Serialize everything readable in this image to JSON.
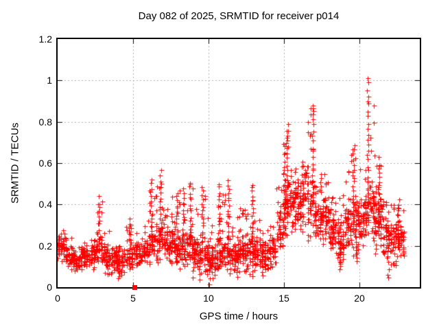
{
  "chart_data": {
    "type": "scatter",
    "title": "Day 082 of 2025, SRMTID for receiver p014",
    "xlabel": "GPS time / hours",
    "ylabel": "SRMTID / TECUs",
    "xlim": [
      0,
      24
    ],
    "ylim": [
      0,
      1.2
    ],
    "xticks": [
      0,
      5,
      10,
      15,
      20
    ],
    "xtick_labels": [
      "0",
      "5",
      "10",
      "15",
      "20"
    ],
    "yticks": [
      0,
      0.2,
      0.4,
      0.6,
      0.8,
      1,
      1.2
    ],
    "ytick_labels": [
      "0",
      "0.2",
      "0.4",
      "0.6",
      "0.8",
      "1",
      "1.2"
    ],
    "grid": true,
    "grid_style": "dotted",
    "grid_color": "#b0b0b0",
    "axis_color": "#000000",
    "legend_position": "none",
    "marker": "plus",
    "marker_size_px": 7,
    "marker_color": "#ff0000",
    "background_color": "#ffffff",
    "seed": 20250082,
    "series_name": "SRMTID",
    "time_coverage_hours": [
      0,
      23
    ],
    "density_bands_t0_t1_n_lo_mid_hi": [
      [
        0.0,
        0.5,
        45,
        0.1,
        0.2,
        0.28
      ],
      [
        0.5,
        1.0,
        50,
        0.08,
        0.15,
        0.24
      ],
      [
        1.0,
        1.5,
        55,
        0.07,
        0.13,
        0.2
      ],
      [
        1.5,
        2.0,
        50,
        0.08,
        0.15,
        0.22
      ],
      [
        2.0,
        2.5,
        45,
        0.08,
        0.16,
        0.26
      ],
      [
        2.5,
        3.0,
        45,
        0.1,
        0.18,
        0.43
      ],
      [
        3.0,
        3.5,
        45,
        0.06,
        0.14,
        0.3
      ],
      [
        3.5,
        4.0,
        45,
        0.05,
        0.13,
        0.2
      ],
      [
        4.0,
        4.5,
        40,
        0.05,
        0.13,
        0.22
      ],
      [
        4.5,
        5.0,
        40,
        0.08,
        0.15,
        0.33
      ],
      [
        5.0,
        5.5,
        40,
        0.08,
        0.16,
        0.28
      ],
      [
        5.5,
        6.0,
        45,
        0.1,
        0.17,
        0.3
      ],
      [
        6.0,
        6.5,
        45,
        0.1,
        0.2,
        0.52
      ],
      [
        6.5,
        7.0,
        50,
        0.1,
        0.22,
        0.56
      ],
      [
        7.0,
        7.5,
        50,
        0.1,
        0.2,
        0.44
      ],
      [
        7.5,
        8.0,
        50,
        0.1,
        0.2,
        0.46
      ],
      [
        8.0,
        8.5,
        45,
        0.08,
        0.18,
        0.47
      ],
      [
        8.5,
        9.0,
        45,
        0.08,
        0.18,
        0.5
      ],
      [
        9.0,
        9.5,
        45,
        0.06,
        0.16,
        0.4
      ],
      [
        9.5,
        10.0,
        45,
        0.03,
        0.14,
        0.48
      ],
      [
        10.0,
        10.5,
        50,
        0.02,
        0.12,
        0.35
      ],
      [
        10.5,
        11.0,
        50,
        0.05,
        0.15,
        0.5
      ],
      [
        11.0,
        11.5,
        50,
        0.06,
        0.16,
        0.52
      ],
      [
        11.5,
        12.0,
        50,
        0.06,
        0.15,
        0.35
      ],
      [
        12.0,
        12.5,
        50,
        0.06,
        0.16,
        0.42
      ],
      [
        12.5,
        13.0,
        55,
        0.05,
        0.16,
        0.5
      ],
      [
        13.0,
        13.5,
        50,
        0.05,
        0.15,
        0.33
      ],
      [
        13.5,
        14.0,
        50,
        0.05,
        0.14,
        0.28
      ],
      [
        14.0,
        14.5,
        45,
        0.08,
        0.18,
        0.35
      ],
      [
        14.5,
        15.0,
        45,
        0.15,
        0.28,
        0.65
      ],
      [
        15.0,
        15.5,
        55,
        0.2,
        0.38,
        0.8
      ],
      [
        15.5,
        16.0,
        55,
        0.25,
        0.4,
        0.65
      ],
      [
        16.0,
        16.5,
        55,
        0.25,
        0.42,
        0.62
      ],
      [
        16.5,
        17.0,
        55,
        0.22,
        0.38,
        0.88
      ],
      [
        17.0,
        17.5,
        55,
        0.2,
        0.35,
        0.6
      ],
      [
        17.5,
        18.0,
        50,
        0.18,
        0.32,
        0.55
      ],
      [
        18.0,
        18.5,
        50,
        0.15,
        0.28,
        0.48
      ],
      [
        18.5,
        19.0,
        50,
        0.09,
        0.22,
        0.45
      ],
      [
        19.0,
        19.5,
        55,
        0.15,
        0.3,
        0.65
      ],
      [
        19.5,
        20.0,
        55,
        0.13,
        0.3,
        0.69
      ],
      [
        20.0,
        20.5,
        55,
        0.18,
        0.33,
        0.75
      ],
      [
        20.5,
        21.0,
        60,
        0.2,
        0.38,
        1.01
      ],
      [
        21.0,
        21.5,
        55,
        0.15,
        0.32,
        0.62
      ],
      [
        21.5,
        22.0,
        55,
        0.08,
        0.24,
        0.45
      ],
      [
        22.0,
        22.5,
        50,
        0.1,
        0.22,
        0.4
      ],
      [
        22.5,
        23.0,
        45,
        0.12,
        0.22,
        0.42
      ]
    ],
    "notable_peaks": [
      {
        "x": 2.7,
        "y": 0.43
      },
      {
        "x": 4.8,
        "y": 0.33
      },
      {
        "x": 6.2,
        "y": 0.52
      },
      {
        "x": 6.8,
        "y": 0.56
      },
      {
        "x": 7.9,
        "y": 0.46
      },
      {
        "x": 8.3,
        "y": 0.47
      },
      {
        "x": 8.8,
        "y": 0.5
      },
      {
        "x": 9.6,
        "y": 0.48
      },
      {
        "x": 10.7,
        "y": 0.5
      },
      {
        "x": 11.3,
        "y": 0.52
      },
      {
        "x": 12.9,
        "y": 0.5
      },
      {
        "x": 15.0,
        "y": 0.7
      },
      {
        "x": 15.2,
        "y": 0.79
      },
      {
        "x": 16.9,
        "y": 0.88
      },
      {
        "x": 19.6,
        "y": 0.68
      },
      {
        "x": 20.55,
        "y": 1.01
      },
      {
        "x": 21.3,
        "y": 0.62
      },
      {
        "x": 22.6,
        "y": 0.42
      }
    ],
    "notable_dips": [
      {
        "x": 3.3,
        "y": 0.06
      },
      {
        "x": 4.0,
        "y": 0.05
      },
      {
        "x": 9.0,
        "y": 0.05
      },
      {
        "x": 9.4,
        "y": 0.03
      },
      {
        "x": 10.05,
        "y": 0.02
      },
      {
        "x": 11.9,
        "y": 0.05
      },
      {
        "x": 13.6,
        "y": 0.05
      },
      {
        "x": 18.7,
        "y": 0.09
      },
      {
        "x": 19.8,
        "y": 0.13
      },
      {
        "x": 21.9,
        "y": 0.04
      }
    ],
    "outliers": [
      {
        "x": 5.1,
        "y": 0.0,
        "marker": "filled-square",
        "color": "#ff0000"
      }
    ]
  }
}
